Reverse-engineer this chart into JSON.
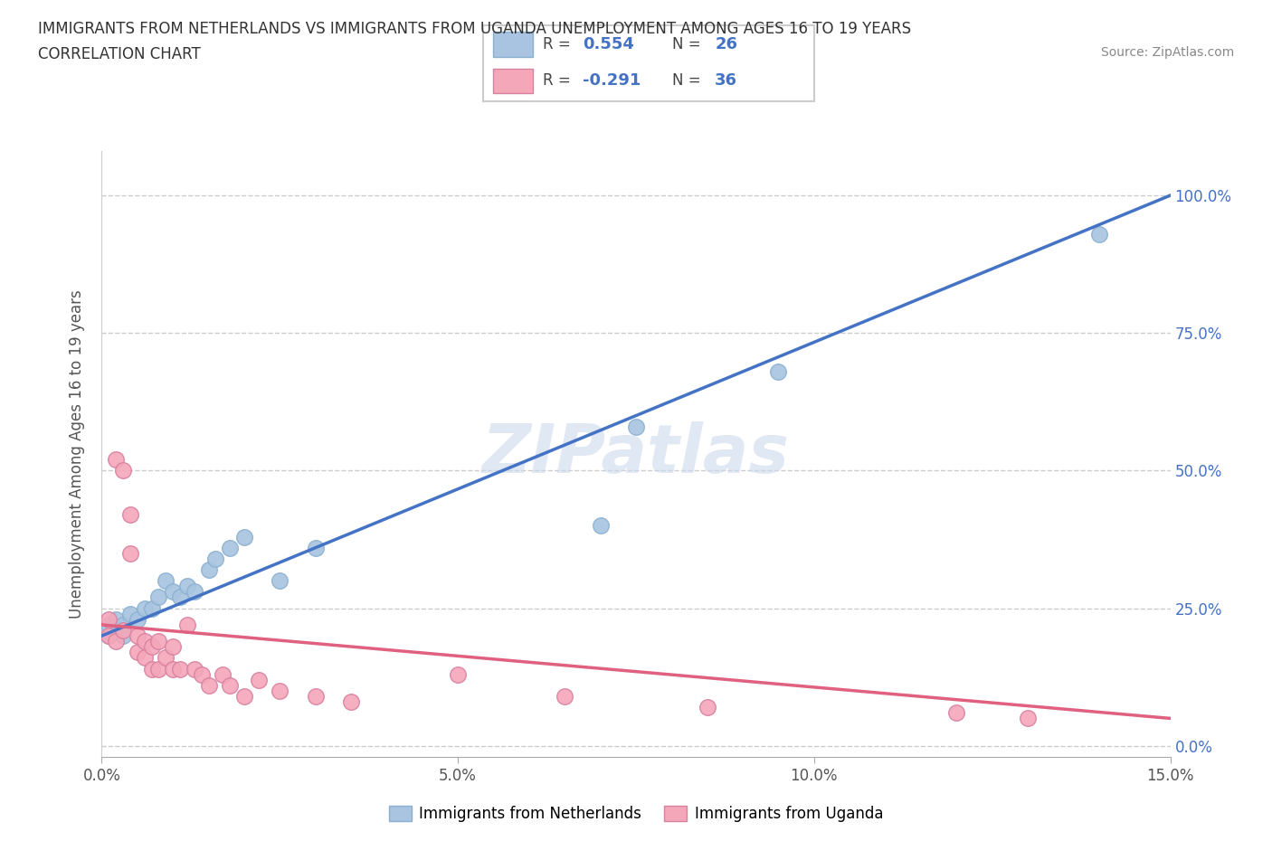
{
  "title_line1": "IMMIGRANTS FROM NETHERLANDS VS IMMIGRANTS FROM UGANDA UNEMPLOYMENT AMONG AGES 16 TO 19 YEARS",
  "title_line2": "CORRELATION CHART",
  "source_text": "Source: ZipAtlas.com",
  "ylabel": "Unemployment Among Ages 16 to 19 years",
  "xlabel_netherlands": "Immigrants from Netherlands",
  "xlabel_uganda": "Immigrants from Uganda",
  "xlim": [
    0.0,
    0.15
  ],
  "ylim": [
    -0.02,
    1.08
  ],
  "yticks": [
    0.0,
    0.25,
    0.5,
    0.75,
    1.0
  ],
  "ytick_labels": [
    "0.0%",
    "25.0%",
    "50.0%",
    "75.0%",
    "100.0%"
  ],
  "xticks": [
    0.0,
    0.05,
    0.1,
    0.15
  ],
  "xtick_labels": [
    "0.0%",
    "5.0%",
    "10.0%",
    "15.0%"
  ],
  "netherlands_R": 0.554,
  "netherlands_N": 26,
  "uganda_R": -0.291,
  "uganda_N": 36,
  "netherlands_color": "#a8c4e0",
  "uganda_color": "#f4a7b9",
  "trendline_netherlands_color": "#4472c4",
  "trendline_uganda_color": "#e06080",
  "nl_trend_x0": 0.0,
  "nl_trend_y0": 0.2,
  "nl_trend_x1": 0.15,
  "nl_trend_y1": 1.0,
  "ug_trend_x0": 0.0,
  "ug_trend_y0": 0.22,
  "ug_trend_x1": 0.15,
  "ug_trend_y1": 0.05,
  "netherlands_x": [
    0.001,
    0.001,
    0.002,
    0.002,
    0.003,
    0.003,
    0.004,
    0.005,
    0.006,
    0.007,
    0.008,
    0.009,
    0.01,
    0.011,
    0.012,
    0.013,
    0.015,
    0.016,
    0.018,
    0.02,
    0.025,
    0.03,
    0.07,
    0.075,
    0.095,
    0.14
  ],
  "netherlands_y": [
    0.2,
    0.22,
    0.21,
    0.23,
    0.2,
    0.22,
    0.24,
    0.23,
    0.25,
    0.25,
    0.27,
    0.3,
    0.28,
    0.27,
    0.29,
    0.28,
    0.32,
    0.34,
    0.36,
    0.38,
    0.3,
    0.36,
    0.4,
    0.58,
    0.68,
    0.93
  ],
  "uganda_x": [
    0.001,
    0.001,
    0.002,
    0.002,
    0.003,
    0.003,
    0.004,
    0.004,
    0.005,
    0.005,
    0.006,
    0.006,
    0.007,
    0.007,
    0.008,
    0.008,
    0.009,
    0.01,
    0.01,
    0.011,
    0.012,
    0.013,
    0.014,
    0.015,
    0.017,
    0.018,
    0.02,
    0.022,
    0.025,
    0.03,
    0.035,
    0.05,
    0.065,
    0.085,
    0.12,
    0.13
  ],
  "uganda_y": [
    0.2,
    0.23,
    0.19,
    0.52,
    0.5,
    0.21,
    0.42,
    0.35,
    0.2,
    0.17,
    0.16,
    0.19,
    0.14,
    0.18,
    0.14,
    0.19,
    0.16,
    0.14,
    0.18,
    0.14,
    0.22,
    0.14,
    0.13,
    0.11,
    0.13,
    0.11,
    0.09,
    0.12,
    0.1,
    0.09,
    0.08,
    0.13,
    0.09,
    0.07,
    0.06,
    0.05
  ]
}
